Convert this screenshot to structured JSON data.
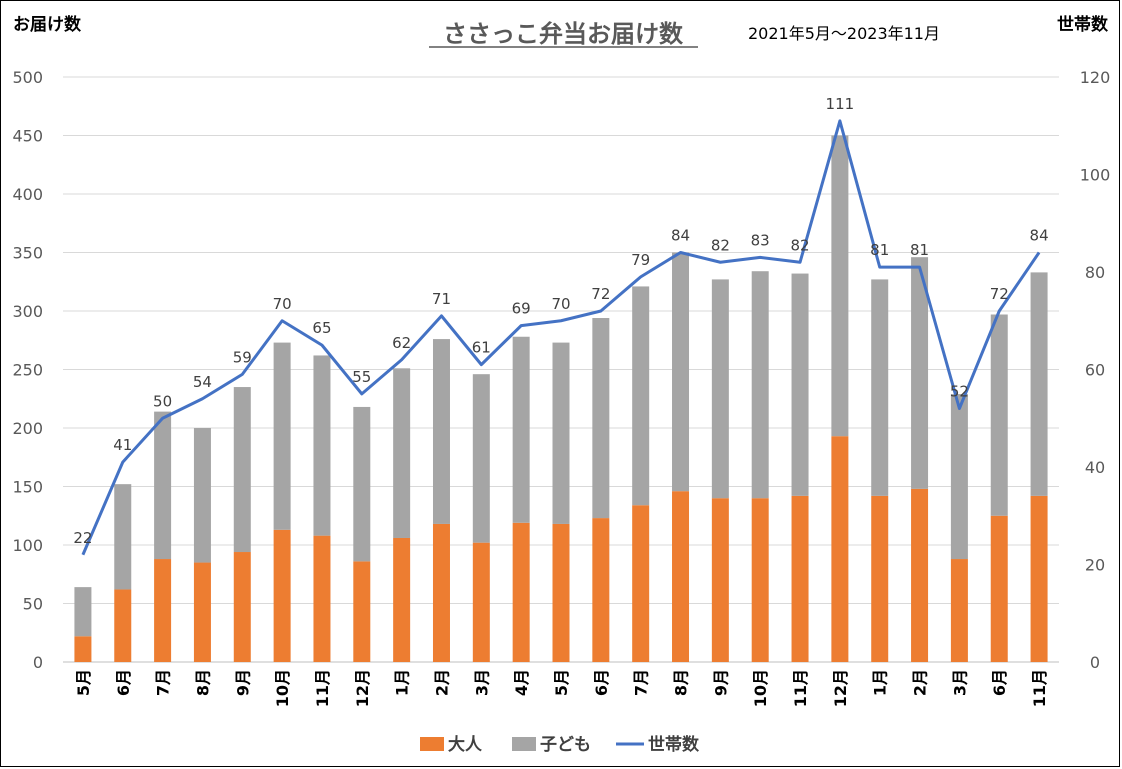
{
  "chart_data": {
    "type": "bar",
    "title": "ささっこ弁当お届け数",
    "subtitle": "2021年5月～2023年11月",
    "ylabel_left": "お届け数",
    "ylabel_right": "世帯数",
    "ylim_left": [
      0,
      500
    ],
    "ylim_right": [
      0,
      120
    ],
    "yticks_left": [
      0,
      50,
      100,
      150,
      200,
      250,
      300,
      350,
      400,
      450,
      500
    ],
    "yticks_right": [
      0,
      20,
      40,
      60,
      80,
      100,
      120
    ],
    "grid": true,
    "legend_position": "bottom",
    "categories": [
      "5月",
      "6月",
      "7月",
      "8月",
      "9月",
      "10月",
      "11月",
      "12月",
      "1月",
      "2月",
      "3月",
      "4月",
      "5月",
      "6月",
      "7月",
      "8月",
      "9月",
      "10月",
      "11月",
      "12月",
      "1月",
      "2月",
      "3月",
      "6月",
      "11月"
    ],
    "series": [
      {
        "name": "大人",
        "kind": "stacked-bar",
        "axis": "left",
        "color": "#ED7D31",
        "values": [
          22,
          62,
          88,
          85,
          94,
          113,
          108,
          86,
          106,
          118,
          102,
          119,
          118,
          123,
          134,
          146,
          140,
          140,
          142,
          193,
          142,
          148,
          88,
          125,
          142
        ]
      },
      {
        "name": "子ども",
        "kind": "stacked-bar",
        "axis": "left",
        "color": "#A5A5A5",
        "values": [
          42,
          90,
          126,
          115,
          141,
          160,
          154,
          132,
          145,
          158,
          144,
          159,
          155,
          171,
          187,
          204,
          187,
          194,
          190,
          257,
          185,
          198,
          141,
          172,
          191
        ]
      },
      {
        "name": "世帯数",
        "kind": "line",
        "axis": "right",
        "color": "#4472C4",
        "values": [
          22,
          41,
          50,
          54,
          59,
          70,
          65,
          55,
          62,
          71,
          61,
          69,
          70,
          72,
          79,
          84,
          82,
          83,
          82,
          111,
          81,
          81,
          52,
          72,
          84
        ]
      }
    ]
  }
}
